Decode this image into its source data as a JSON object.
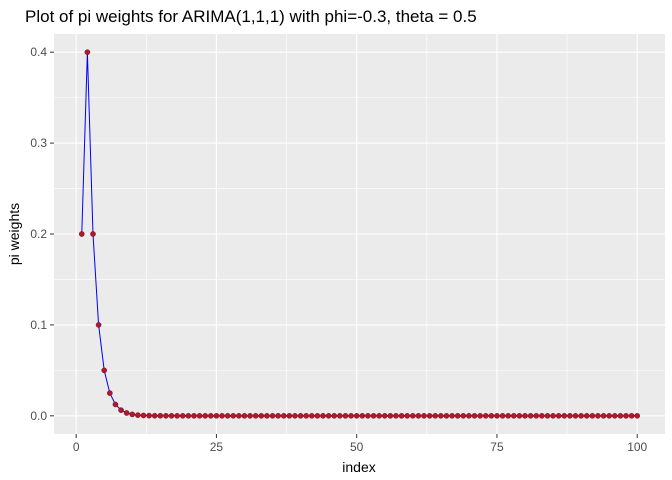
{
  "chart_data": {
    "type": "line",
    "title": "Plot of pi weights for ARIMA(1,1,1) with phi=-0.3, theta = 0.5",
    "xlabel": "index",
    "ylabel": "pi weights",
    "xlim": [
      1,
      100
    ],
    "ylim": [
      0,
      0.4
    ],
    "x_ticks": [
      0,
      25,
      50,
      75,
      100
    ],
    "x_tick_labels": [
      "0",
      "25",
      "50",
      "75",
      "100"
    ],
    "y_ticks": [
      0,
      0.1,
      0.2,
      0.3,
      0.4
    ],
    "y_tick_labels": [
      "0.0",
      "0.1",
      "0.2",
      "0.3",
      "0.4"
    ],
    "grid": true,
    "legend": "none",
    "series": [
      {
        "x_start": 1,
        "x_end": 100,
        "values": [
          0.2,
          0.4,
          0.2,
          0.1,
          0.05,
          0.025,
          0.0125,
          0.00625,
          0.003125,
          0.0015625,
          0.00078125,
          0.000390625,
          0.0001953125,
          9.765625e-05,
          4.8828125e-05,
          2.44140625e-05,
          1.220703125e-05,
          6.103515625e-06,
          3.0517578125e-06,
          1.52587890625e-06,
          0,
          0,
          0,
          0,
          0,
          0,
          0,
          0,
          0,
          0,
          0,
          0,
          0,
          0,
          0,
          0,
          0,
          0,
          0,
          0,
          0,
          0,
          0,
          0,
          0,
          0,
          0,
          0,
          0,
          0,
          0,
          0,
          0,
          0,
          0,
          0,
          0,
          0,
          0,
          0,
          0,
          0,
          0,
          0,
          0,
          0,
          0,
          0,
          0,
          0,
          0,
          0,
          0,
          0,
          0,
          0,
          0,
          0,
          0,
          0,
          0,
          0,
          0,
          0,
          0,
          0,
          0,
          0,
          0,
          0,
          0,
          0,
          0,
          0,
          0,
          0,
          0,
          0,
          0,
          0
        ]
      }
    ],
    "colors": {
      "panel_background": "#ebebeb",
      "grid_major": "#ffffff",
      "line": "#0000ff",
      "point": "#b2182b"
    }
  }
}
